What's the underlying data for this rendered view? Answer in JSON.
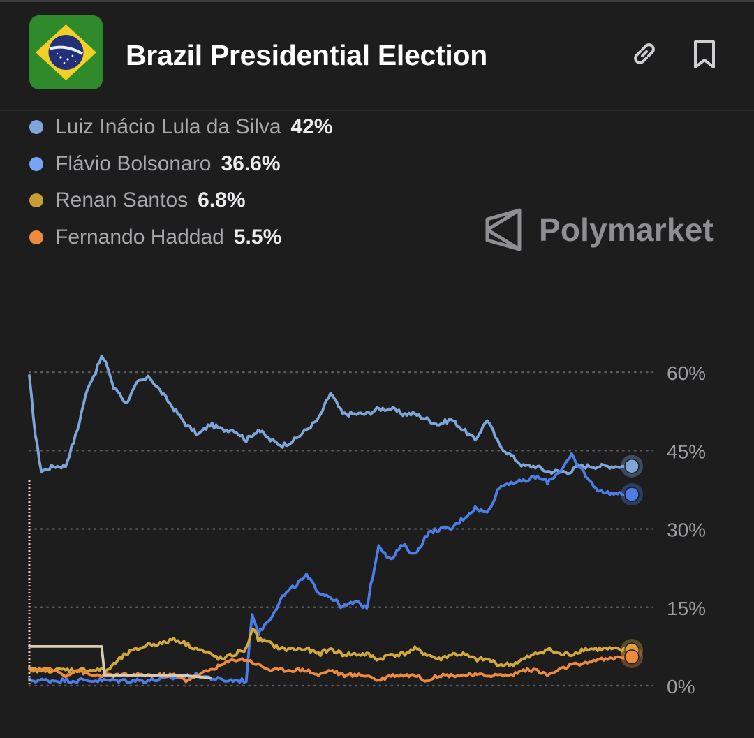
{
  "header": {
    "title": "Brazil Presidential Election",
    "flag_icon": "brazil-flag-icon",
    "link_icon": "link-icon",
    "bookmark_icon": "bookmark-icon"
  },
  "brand": {
    "name": "Polymarket",
    "icon": "polymarket-logo-icon"
  },
  "colors": {
    "background": "#1d1d1e",
    "lula": "#7ea6da",
    "flavio": "#4d7ee8",
    "renan": "#d3a93c",
    "haddad": "#ee8a3c",
    "other": "#d6cbb5",
    "grid": "#5a5a5e",
    "tick": "#9d9da2"
  },
  "chart_data": {
    "type": "line",
    "title": "",
    "xlabel": "",
    "ylabel": "",
    "ylim": [
      0,
      60
    ],
    "yticks": [
      "60%",
      "45%",
      "30%",
      "15%",
      "0%"
    ],
    "ytick_values": [
      60,
      45,
      30,
      15,
      0
    ],
    "grid": true,
    "legend_position": "top-left",
    "x_index": [
      0,
      2,
      4,
      6,
      8,
      10,
      12,
      14,
      16,
      18,
      20,
      22,
      24,
      26,
      28,
      30,
      32,
      34,
      36,
      38,
      40,
      42,
      44,
      46,
      48,
      50,
      52,
      54,
      56,
      58,
      60,
      62,
      64,
      66,
      68,
      70,
      72,
      74,
      76,
      78,
      80,
      82,
      84,
      86,
      88,
      90,
      92,
      94,
      96,
      98,
      100
    ],
    "series": [
      {
        "name": "Luiz Inácio Lula da Silva",
        "legend_value": "42%",
        "color": "#7ea6da",
        "x": [
          0,
          1,
          2,
          4,
          6,
          8,
          9,
          10,
          11,
          12,
          13,
          14,
          15,
          16,
          17,
          18,
          20,
          22,
          24,
          26,
          28,
          30,
          32,
          34,
          36,
          38,
          40,
          42,
          44,
          46,
          48,
          50,
          52,
          54,
          56,
          58,
          60,
          62,
          64,
          66,
          68,
          70,
          72,
          74,
          76,
          78,
          80,
          82,
          84,
          86,
          88,
          90,
          91,
          92,
          93,
          94,
          95,
          96,
          97,
          98,
          100
        ],
        "values": [
          59,
          48,
          41,
          42,
          42,
          49,
          54,
          58,
          60,
          63,
          61,
          57,
          56,
          54,
          56,
          58,
          59,
          56,
          53,
          50,
          48,
          50,
          49,
          49,
          47,
          49,
          47,
          46,
          47,
          49,
          51,
          56,
          52,
          52,
          52,
          53,
          53,
          52,
          52,
          51,
          50,
          51,
          49,
          47,
          51,
          46,
          44,
          42,
          42,
          41,
          41,
          41,
          42,
          42,
          42,
          42,
          42,
          42,
          42,
          42,
          42
        ]
      },
      {
        "name": "Flávio Bolsonaro",
        "legend_value": "36.6%",
        "color": "#4d7ee8",
        "x": [
          0,
          10,
          20,
          28,
          32,
          36,
          37,
          38,
          40,
          42,
          44,
          46,
          48,
          50,
          52,
          54,
          56,
          58,
          60,
          62,
          64,
          66,
          68,
          70,
          72,
          74,
          76,
          78,
          80,
          82,
          84,
          86,
          88,
          90,
          91,
          92,
          93,
          94,
          95,
          96,
          98,
          100
        ],
        "values": [
          1,
          1,
          1,
          2,
          1,
          1,
          14,
          10,
          13,
          17,
          19,
          21,
          18,
          17,
          15,
          16,
          15,
          27,
          24,
          27,
          25,
          29,
          30,
          30,
          32,
          34,
          33,
          38,
          39,
          39,
          40,
          39,
          41,
          44,
          42,
          41,
          39,
          38,
          37,
          37,
          36.6,
          36.6
        ]
      },
      {
        "name": "Renan Santos",
        "legend_value": "6.8%",
        "color": "#d3a93c",
        "x": [
          0,
          2,
          4,
          6,
          8,
          10,
          12,
          13,
          14,
          16,
          18,
          20,
          22,
          24,
          26,
          28,
          30,
          32,
          34,
          36,
          37,
          38,
          40,
          42,
          44,
          46,
          48,
          50,
          52,
          54,
          56,
          58,
          60,
          62,
          64,
          66,
          68,
          70,
          72,
          74,
          76,
          78,
          80,
          82,
          84,
          86,
          88,
          90,
          92,
          94,
          96,
          98,
          100
        ],
        "values": [
          3,
          3,
          3,
          3,
          3,
          3,
          3,
          3,
          4,
          6,
          7,
          8,
          8,
          9,
          8,
          7,
          6,
          5,
          6,
          7,
          11,
          9,
          8,
          7,
          7,
          7,
          6,
          7,
          6,
          6,
          6,
          5,
          6,
          6,
          7,
          6,
          5,
          6,
          6,
          5,
          5,
          4,
          4,
          5,
          6,
          7,
          6,
          6,
          7,
          7,
          7,
          6.8,
          6.8
        ]
      },
      {
        "name": "Fernando Haddad",
        "legend_value": "5.5%",
        "color": "#ee8a3c",
        "x": [
          0,
          2,
          4,
          6,
          8,
          10,
          12,
          14,
          16,
          18,
          20,
          22,
          24,
          26,
          28,
          30,
          32,
          34,
          36,
          38,
          40,
          42,
          44,
          46,
          48,
          50,
          52,
          54,
          56,
          58,
          60,
          62,
          64,
          66,
          68,
          70,
          72,
          74,
          76,
          78,
          80,
          82,
          84,
          86,
          88,
          90,
          92,
          94,
          96,
          98,
          100
        ],
        "values": [
          3,
          3,
          3,
          2,
          3,
          2,
          2,
          2,
          2,
          2,
          2,
          2,
          2,
          1,
          2,
          3,
          4,
          5,
          5,
          4,
          3,
          3,
          3,
          3,
          2,
          3,
          2,
          2,
          2,
          1,
          2,
          2,
          2,
          1,
          2,
          2,
          2,
          2,
          2,
          2,
          2,
          3,
          3,
          2,
          3,
          4,
          4,
          5,
          5,
          5.5,
          5.5
        ]
      },
      {
        "name": "",
        "color": "#d6cbb5",
        "x": [
          0,
          5,
          10,
          12,
          12.5,
          15,
          20,
          25,
          30
        ],
        "values": [
          7.5,
          7.5,
          7.5,
          7.5,
          2,
          2,
          2,
          2,
          1.5
        ]
      }
    ]
  }
}
